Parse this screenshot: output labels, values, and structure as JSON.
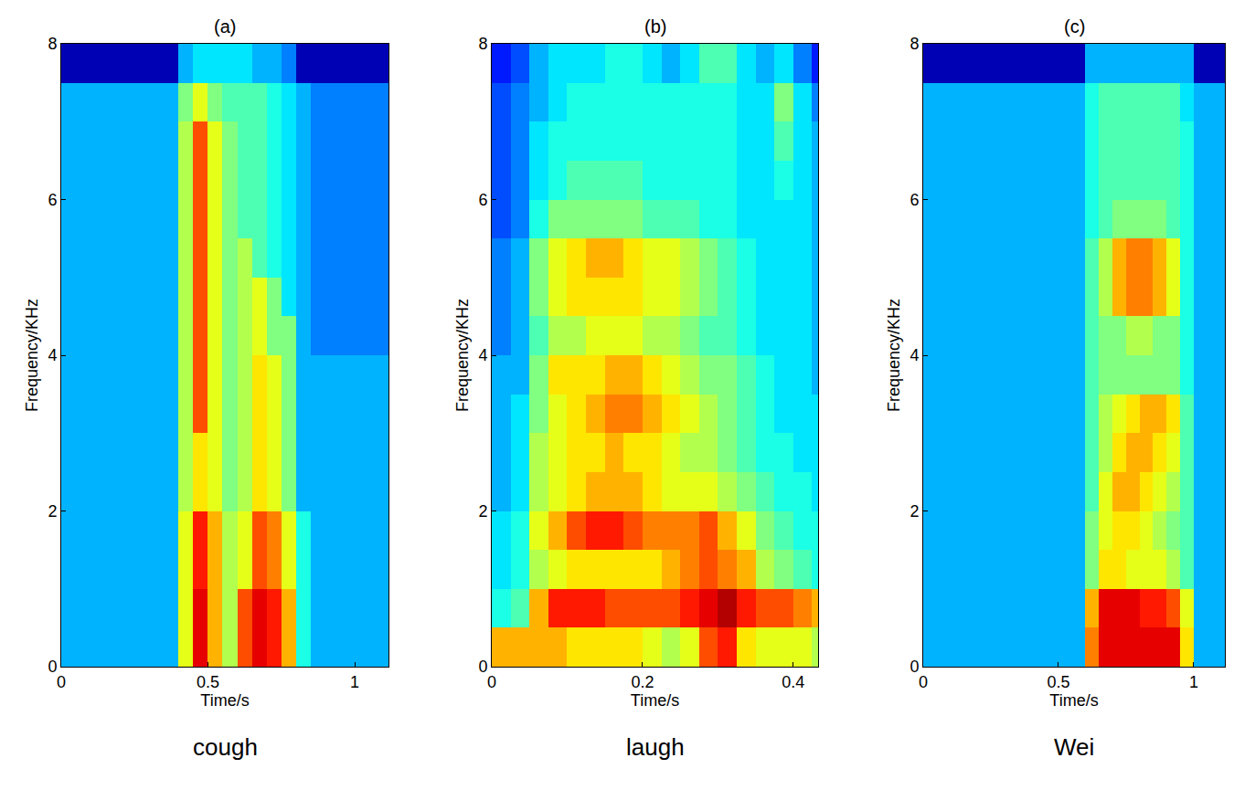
{
  "chart_data": [
    {
      "type": "heatmap",
      "title": "(a)",
      "caption": "cough",
      "x_label": "Time/s",
      "y_label": "Frequency/KHz",
      "xlim": [
        0,
        1.115
      ],
      "xticks": [
        0,
        0.5,
        1
      ],
      "ylim": [
        0,
        8
      ],
      "yticks": [
        0,
        2,
        4,
        6,
        8
      ],
      "zlim": [
        0,
        10
      ],
      "x": [
        0.025,
        0.075,
        0.125,
        0.175,
        0.225,
        0.275,
        0.325,
        0.375,
        0.425,
        0.475,
        0.525,
        0.575,
        0.625,
        0.675,
        0.725,
        0.775,
        0.825,
        0.875,
        0.925,
        0.975,
        1.025,
        1.075,
        1.125
      ],
      "y": [
        0.25,
        0.75,
        1.25,
        1.75,
        2.25,
        2.75,
        3.25,
        3.75,
        4.25,
        4.75,
        5.25,
        5.75,
        6.25,
        6.75,
        7.25,
        7.75
      ],
      "z": [
        [
          3,
          3,
          3,
          3,
          3,
          3,
          3,
          3,
          6,
          9,
          7,
          5.5,
          8,
          9,
          8.5,
          7,
          4,
          3,
          3,
          3,
          3,
          3,
          3
        ],
        [
          3,
          3,
          3,
          3,
          3,
          3,
          3,
          3,
          6,
          9,
          7,
          5.5,
          8,
          9,
          8.5,
          7,
          4,
          3,
          3,
          3,
          3,
          3,
          3
        ],
        [
          3,
          3,
          3,
          3,
          3,
          3,
          3,
          3,
          6,
          8.5,
          7,
          5.5,
          6,
          8,
          7.5,
          6,
          4,
          3,
          3,
          3,
          3,
          3,
          3
        ],
        [
          3,
          3,
          3,
          3,
          3,
          3,
          3,
          3,
          6,
          8.5,
          7,
          5.5,
          6,
          8,
          7.5,
          6,
          4,
          3,
          3,
          3,
          3,
          3,
          3
        ],
        [
          3,
          3,
          3,
          3,
          3,
          3,
          3,
          3,
          5.5,
          6.5,
          6,
          5,
          5.5,
          6.5,
          6,
          5,
          3,
          3,
          3,
          3,
          3,
          3,
          3
        ],
        [
          3,
          3,
          3,
          3,
          3,
          3,
          3,
          3,
          5.5,
          6.5,
          6,
          5,
          5.5,
          6.5,
          6,
          5,
          3,
          3,
          3,
          3,
          3,
          3,
          3
        ],
        [
          3,
          3,
          3,
          3,
          3,
          3,
          3,
          3,
          5.5,
          8,
          6,
          5,
          5.5,
          6.5,
          6,
          5,
          3,
          3,
          3,
          3,
          3,
          3,
          3
        ],
        [
          3,
          3,
          3,
          3,
          3,
          3,
          3,
          3,
          5.5,
          8,
          6,
          5,
          5.5,
          6.5,
          6,
          5,
          3,
          3,
          3,
          3,
          3,
          3,
          3
        ],
        [
          3,
          3,
          3,
          3,
          3,
          3,
          3,
          3,
          5.5,
          8,
          6,
          5,
          5.5,
          6,
          5,
          5,
          3,
          2.5,
          2.5,
          2.5,
          2.5,
          2.5,
          2.5
        ],
        [
          3,
          3,
          3,
          3,
          3,
          3,
          3,
          3,
          5.5,
          8,
          6,
          5,
          5.5,
          6,
          5,
          3.5,
          3,
          2.5,
          2.5,
          2.5,
          2.5,
          2.5,
          2.5
        ],
        [
          3,
          3,
          3,
          3,
          3,
          3,
          3,
          3,
          5.5,
          8,
          6,
          5,
          5.5,
          4.5,
          4,
          3.5,
          3,
          2.5,
          2.5,
          2.5,
          2.5,
          2.5,
          2.5
        ],
        [
          3,
          3,
          3,
          3,
          3,
          3,
          3,
          3,
          5.5,
          8,
          6,
          5,
          4.5,
          4.5,
          4,
          3.5,
          3,
          2.5,
          2.5,
          2.5,
          2.5,
          2.5,
          2.5
        ],
        [
          3,
          3,
          3,
          3,
          3,
          3,
          3,
          3,
          5.5,
          8,
          6,
          5,
          4.5,
          4.5,
          4,
          3.5,
          3,
          2.5,
          2.5,
          2.5,
          2.5,
          2.5,
          2.5
        ],
        [
          3,
          3,
          3,
          3,
          3,
          3,
          3,
          3,
          5.5,
          8,
          6,
          5,
          4.5,
          4.5,
          4,
          3.5,
          3,
          2.5,
          2.5,
          2.5,
          2.5,
          2.5,
          2.5
        ],
        [
          3,
          3,
          3,
          3,
          3,
          3,
          3,
          3,
          5,
          6,
          5,
          4.5,
          4.5,
          4.5,
          4,
          3.5,
          3,
          2.5,
          2.5,
          2.5,
          2.5,
          2.5,
          2.5
        ],
        [
          0.5,
          0.5,
          0.5,
          0.5,
          0.5,
          0.5,
          0.5,
          0.5,
          3,
          3.5,
          3.5,
          3.5,
          3.5,
          3,
          3,
          2.5,
          0.5,
          0.5,
          0.5,
          0.5,
          0.5,
          0.5,
          0.5
        ]
      ]
    },
    {
      "type": "heatmap",
      "title": "(b)",
      "caption": "laugh",
      "x_label": "Time/s",
      "y_label": "Frequency/KHz",
      "xlim": [
        0,
        0.433
      ],
      "xticks": [
        0,
        0.2,
        0.4
      ],
      "ylim": [
        0,
        8
      ],
      "yticks": [
        0,
        2,
        4,
        6,
        8
      ],
      "zlim": [
        0,
        10
      ],
      "x": [
        0.0125,
        0.0375,
        0.0625,
        0.0875,
        0.1125,
        0.1375,
        0.1625,
        0.1875,
        0.2125,
        0.2375,
        0.2625,
        0.2875,
        0.3125,
        0.3375,
        0.3625,
        0.3875,
        0.4125,
        0.4375
      ],
      "y": [
        0.25,
        0.75,
        1.25,
        1.75,
        2.25,
        2.75,
        3.25,
        3.75,
        4.25,
        4.75,
        5.25,
        5.75,
        6.25,
        6.75,
        7.25,
        7.75
      ],
      "z": [
        [
          7,
          7,
          7,
          7,
          6.5,
          6.5,
          6.5,
          6.5,
          6,
          5.5,
          6,
          8,
          8.5,
          6.5,
          6,
          6,
          6,
          5.5
        ],
        [
          4,
          4.5,
          7,
          8.5,
          8.5,
          8.5,
          8,
          8,
          8,
          8,
          8.5,
          9,
          9.5,
          8.5,
          8,
          8,
          7.5,
          7
        ],
        [
          3.5,
          4,
          5.5,
          6,
          6.5,
          6.5,
          6.5,
          6.5,
          6.5,
          7,
          7.5,
          8,
          7.5,
          7,
          5.5,
          5,
          4.5,
          4
        ],
        [
          3.5,
          4,
          6,
          7,
          8,
          8.5,
          8.5,
          8,
          7.5,
          7.5,
          7.5,
          8,
          7,
          6,
          5,
          4.5,
          4,
          4
        ],
        [
          3,
          3.5,
          5.5,
          6,
          6.5,
          7,
          7,
          7,
          6.5,
          6,
          6,
          6,
          5.5,
          5,
          4.5,
          4,
          4,
          3.5
        ],
        [
          3,
          3.5,
          5.5,
          6,
          6.5,
          6.5,
          7,
          6.5,
          6.5,
          6,
          5.5,
          5.5,
          5,
          4.5,
          4,
          4,
          3.5,
          3.5
        ],
        [
          3,
          3.5,
          5,
          6,
          6.5,
          7,
          7.5,
          7.5,
          7,
          6.5,
          6,
          5.5,
          5,
          4.5,
          4,
          3.5,
          3.5,
          3.5
        ],
        [
          3,
          3,
          5,
          6.5,
          6.5,
          6.5,
          7,
          7,
          6.5,
          6,
          5.5,
          5,
          5,
          4.5,
          4,
          3.5,
          3.5,
          3
        ],
        [
          2.5,
          3,
          4.5,
          5.5,
          5.5,
          6,
          6,
          6,
          5.5,
          5.5,
          5,
          4.5,
          4.5,
          4,
          3.5,
          3.5,
          3.5,
          3
        ],
        [
          2.5,
          3,
          5,
          6,
          6.5,
          6.5,
          6.5,
          6.5,
          6,
          6,
          5.5,
          5,
          4.5,
          4,
          3.5,
          3.5,
          3.5,
          3
        ],
        [
          2.5,
          3,
          5,
          6,
          6.5,
          7,
          7,
          6.5,
          6,
          6,
          5.5,
          5,
          4.5,
          4,
          3.5,
          3.5,
          3.5,
          3
        ],
        [
          2,
          2.5,
          4,
          5,
          5,
          5,
          5,
          5,
          4.5,
          4.5,
          4.5,
          4,
          4,
          3.5,
          3.5,
          3.5,
          3.5,
          3
        ],
        [
          2,
          2.5,
          3.5,
          4,
          4.5,
          4.5,
          4.5,
          4.5,
          4,
          4,
          4,
          4,
          4,
          3.5,
          3.5,
          4,
          3.5,
          3
        ],
        [
          2,
          2.5,
          3.5,
          4,
          4,
          4,
          4,
          4,
          4,
          4,
          4,
          4,
          4,
          3.5,
          3.5,
          4.5,
          3.5,
          3
        ],
        [
          2,
          2.5,
          3,
          3.5,
          4,
          4,
          4,
          4,
          4,
          4,
          4,
          4,
          4,
          3.5,
          3.5,
          5,
          3.5,
          2.5
        ],
        [
          1.5,
          2,
          3,
          3.5,
          3.5,
          3.5,
          4,
          4,
          3.5,
          3,
          3.5,
          4.5,
          4.5,
          3.5,
          3,
          3.5,
          2.5,
          1.5
        ]
      ]
    },
    {
      "type": "heatmap",
      "title": "(c)",
      "caption": "Wei",
      "x_label": "Time/s",
      "y_label": "Frequency/KHz",
      "xlim": [
        0,
        1.115
      ],
      "xticks": [
        0,
        0.5,
        1
      ],
      "ylim": [
        0,
        8
      ],
      "yticks": [
        0,
        2,
        4,
        6,
        8
      ],
      "zlim": [
        0,
        10
      ],
      "x": [
        0.025,
        0.075,
        0.125,
        0.175,
        0.225,
        0.275,
        0.325,
        0.375,
        0.425,
        0.475,
        0.525,
        0.575,
        0.625,
        0.675,
        0.725,
        0.775,
        0.825,
        0.875,
        0.925,
        0.975,
        1.025,
        1.075,
        1.125
      ],
      "y": [
        0.25,
        0.75,
        1.25,
        1.75,
        2.25,
        2.75,
        3.25,
        3.75,
        4.25,
        4.75,
        5.25,
        5.75,
        6.25,
        6.75,
        7.25,
        7.75
      ],
      "z": [
        [
          3,
          3,
          3,
          3,
          3,
          3,
          3,
          3,
          3,
          3,
          3,
          3,
          7.5,
          9,
          9,
          9,
          9,
          9,
          9,
          6.5,
          3,
          3,
          3
        ],
        [
          3,
          3,
          3,
          3,
          3,
          3,
          3,
          3,
          3,
          3,
          3,
          3,
          7,
          9,
          9,
          9,
          8.5,
          8.5,
          8,
          6,
          3,
          3,
          3
        ],
        [
          3,
          3,
          3,
          3,
          3,
          3,
          3,
          3,
          3,
          3,
          3,
          3,
          5,
          6.5,
          6.5,
          6,
          6,
          6,
          5.5,
          4.5,
          3,
          3,
          3
        ],
        [
          3,
          3,
          3,
          3,
          3,
          3,
          3,
          3,
          3,
          3,
          3,
          3,
          5,
          6,
          6.5,
          6.5,
          6,
          5.5,
          5,
          4.5,
          3,
          3,
          3
        ],
        [
          3,
          3,
          3,
          3,
          3,
          3,
          3,
          3,
          3,
          3,
          3,
          3,
          4.5,
          6,
          7,
          7,
          6.5,
          6,
          5.5,
          4.5,
          3,
          3,
          3
        ],
        [
          3,
          3,
          3,
          3,
          3,
          3,
          3,
          3,
          3,
          3,
          3,
          3,
          4.5,
          5.5,
          6.5,
          7,
          7,
          6.5,
          6,
          4.5,
          3,
          3,
          3
        ],
        [
          3,
          3,
          3,
          3,
          3,
          3,
          3,
          3,
          3,
          3,
          3,
          3,
          4.5,
          5.5,
          6,
          6.5,
          7,
          7,
          6.5,
          4.5,
          3,
          3,
          3
        ],
        [
          3,
          3,
          3,
          3,
          3,
          3,
          3,
          3,
          3,
          3,
          3,
          3,
          4.5,
          5,
          5,
          5,
          5,
          5,
          5,
          4,
          3,
          3,
          3
        ],
        [
          3,
          3,
          3,
          3,
          3,
          3,
          3,
          3,
          3,
          3,
          3,
          3,
          4.5,
          5,
          5,
          5.5,
          5.5,
          5,
          5,
          4,
          3,
          3,
          3
        ],
        [
          3,
          3,
          3,
          3,
          3,
          3,
          3,
          3,
          3,
          3,
          3,
          3,
          4.5,
          5.5,
          7,
          7.5,
          7.5,
          7,
          6,
          4,
          3,
          3,
          3
        ],
        [
          3,
          3,
          3,
          3,
          3,
          3,
          3,
          3,
          3,
          3,
          3,
          3,
          4.5,
          5.5,
          7,
          7.5,
          7.5,
          7,
          6,
          4,
          3,
          3,
          3
        ],
        [
          3,
          3,
          3,
          3,
          3,
          3,
          3,
          3,
          3,
          3,
          3,
          3,
          4,
          4.5,
          5,
          5,
          5,
          5,
          4.5,
          4,
          3,
          3,
          3
        ],
        [
          3,
          3,
          3,
          3,
          3,
          3,
          3,
          3,
          3,
          3,
          3,
          3,
          4,
          4.5,
          4.5,
          4.5,
          4.5,
          4.5,
          4.5,
          4,
          3,
          3,
          3
        ],
        [
          3,
          3,
          3,
          3,
          3,
          3,
          3,
          3,
          3,
          3,
          3,
          3,
          4,
          4.5,
          4.5,
          4.5,
          4.5,
          4.5,
          4.5,
          4,
          3,
          3,
          3
        ],
        [
          3,
          3,
          3,
          3,
          3,
          3,
          3,
          3,
          3,
          3,
          3,
          3,
          4,
          4.5,
          4.5,
          4.5,
          4.5,
          4.5,
          4.5,
          3.5,
          3,
          3,
          3
        ],
        [
          0.5,
          0.5,
          0.5,
          0.5,
          0.5,
          0.5,
          0.5,
          0.5,
          0.5,
          0.5,
          0.5,
          0.5,
          3,
          3,
          3,
          3,
          3,
          3,
          3,
          3,
          0.5,
          0.5,
          0.5
        ]
      ]
    }
  ]
}
